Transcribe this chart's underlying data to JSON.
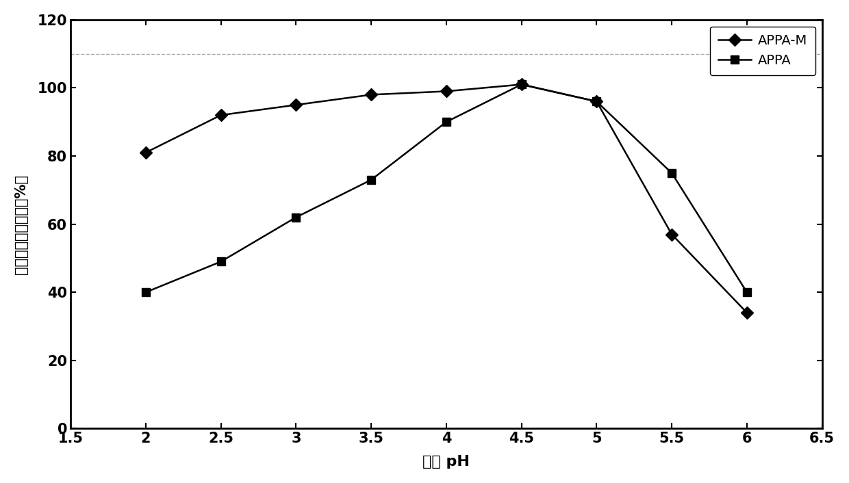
{
  "appa_m_x": [
    2.0,
    2.5,
    3.0,
    3.5,
    4.0,
    4.5,
    5.0,
    5.5,
    6.0
  ],
  "appa_m_y": [
    81,
    92,
    95,
    98,
    99,
    101,
    96,
    57,
    34
  ],
  "appa_x": [
    2.0,
    2.5,
    3.0,
    3.5,
    4.0,
    4.5,
    5.0,
    5.5,
    6.0
  ],
  "appa_y": [
    40,
    49,
    62,
    73,
    90,
    101,
    96,
    75,
    40
  ],
  "xlabel": "反应 pH",
  "ylabel": "植酸酶的相对活性（%）",
  "xlim": [
    1.5,
    6.5
  ],
  "ylim": [
    0,
    120
  ],
  "yticks": [
    0,
    20,
    40,
    60,
    80,
    100,
    120
  ],
  "xticks": [
    1.5,
    2.0,
    2.5,
    3.0,
    3.5,
    4.0,
    4.5,
    5.0,
    5.5,
    6.0,
    6.5
  ],
  "xtick_labels": [
    "1.5",
    "2",
    "2.5",
    "3",
    "3.5",
    "4",
    "4.5",
    "5",
    "5.5",
    "6",
    "6.5"
  ],
  "legend_labels": [
    "APPA-M",
    "APPA"
  ],
  "line_color": "#000000",
  "marker_appa_m": "D",
  "marker_appa": "s",
  "hline_y": 110,
  "hline_color": "#aaaaaa",
  "background_color": "#ffffff"
}
